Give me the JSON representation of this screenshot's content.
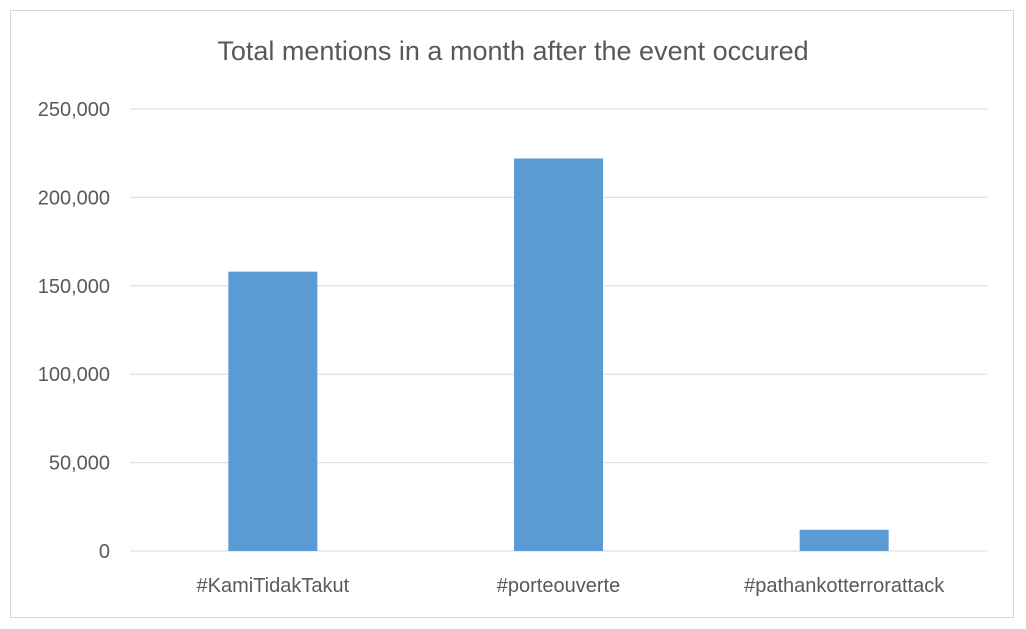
{
  "chart_data": {
    "type": "bar",
    "title": "Total mentions in a month after the event occured",
    "xlabel": "",
    "ylabel": "",
    "categories": [
      "#KamiTidakTakut",
      "#porteouverte",
      "#pathankotterrorattack"
    ],
    "values": [
      158000,
      222000,
      12000
    ],
    "ylim": [
      0,
      250000
    ],
    "yticks": [
      0,
      50000,
      100000,
      150000,
      200000,
      250000
    ],
    "ytick_labels": [
      "0",
      "50,000",
      "100,000",
      "150,000",
      "200,000",
      "250,000"
    ],
    "grid": true,
    "legend": "none",
    "bar_color": "#5b9bd5",
    "grid_color": "#d9d9d9"
  }
}
